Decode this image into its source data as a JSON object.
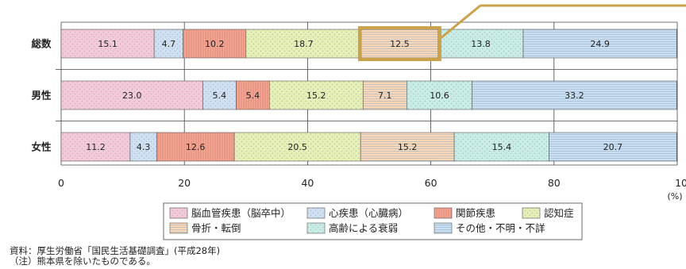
{
  "chart_data": {
    "type": "bar",
    "orientation": "horizontal",
    "stacked": true,
    "categories": [
      "総数",
      "男性",
      "女性"
    ],
    "series": [
      {
        "name": "脳血管疾患（脳卒中）",
        "values": [
          15.1,
          23.0,
          11.2
        ],
        "color": "#f4c9d9",
        "pattern": "dots"
      },
      {
        "name": "心疾患（心臓病）",
        "values": [
          4.7,
          5.4,
          4.3
        ],
        "color": "#cfe0f3",
        "pattern": "dots"
      },
      {
        "name": "関節疾患",
        "values": [
          10.2,
          5.4,
          12.6
        ],
        "color": "#f5a795",
        "pattern": "vlines"
      },
      {
        "name": "認知症",
        "values": [
          18.7,
          15.2,
          20.5
        ],
        "color": "#e6efb5",
        "pattern": "dots"
      },
      {
        "name": "骨折・転倒",
        "values": [
          12.5,
          7.1,
          15.2
        ],
        "color": "#fcd8b6",
        "pattern": "hlines"
      },
      {
        "name": "高齢による衰弱",
        "values": [
          13.8,
          10.6,
          15.4
        ],
        "color": "#c8ece6",
        "pattern": "dots"
      },
      {
        "name": "その他・不明・不詳",
        "values": [
          24.9,
          33.2,
          20.7
        ],
        "color": "#c9dff3",
        "pattern": "hlines"
      }
    ],
    "x_ticks": [
      "0",
      "20",
      "40",
      "60",
      "80",
      "100"
    ],
    "xlim": [
      0,
      100
    ],
    "unit": "(%)",
    "grid": true,
    "legend_position": "bottom",
    "highlight": {
      "category": "総数",
      "series": "骨折・転倒",
      "color": "#c9a24a"
    }
  },
  "notes": [
    "資料：厚生労働省「国民生活基礎調査」(平成28年)",
    "（注）熊本県を除いたものである。"
  ]
}
